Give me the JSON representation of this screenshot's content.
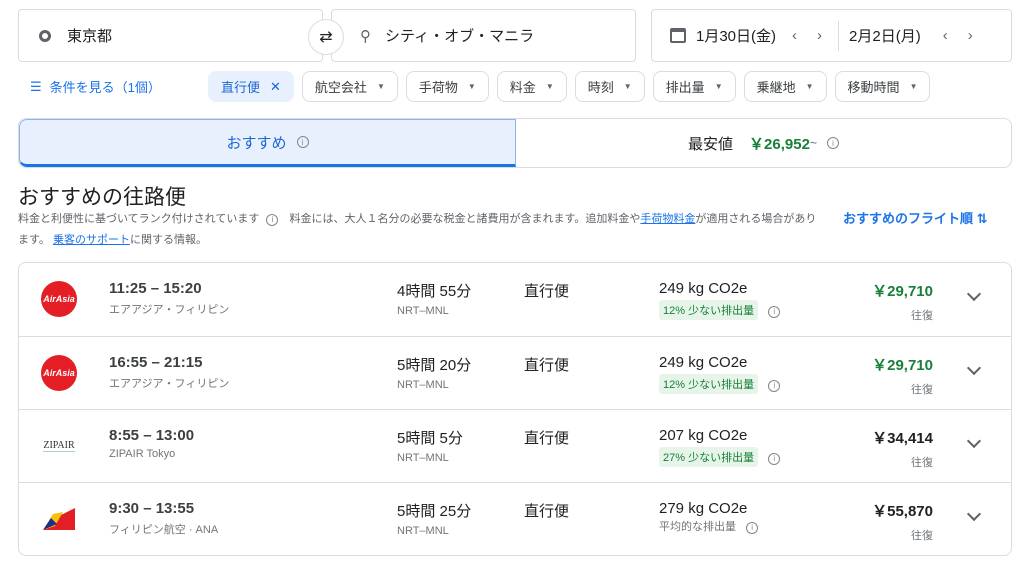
{
  "search": {
    "origin": "東京都",
    "destination": "シティ・オブ・マニラ",
    "depart_date": "1月30日(金)",
    "return_date": "2月2日(月)"
  },
  "filters": {
    "show_label": "条件を見る（1個）",
    "active": "直行便",
    "items": [
      "航空会社",
      "手荷物",
      "料金",
      "時刻",
      "排出量",
      "乗継地",
      "移動時間"
    ]
  },
  "tabs": {
    "best": "おすすめ",
    "cheapest": "最安値",
    "cheapest_price": "￥26,952",
    "cheapest_suffix": "~"
  },
  "section": {
    "title": "おすすめの往路便",
    "ranked_note": "料金と利便性に基づいてランク付けされています",
    "fare_note_a": "料金には、大人１名分の必要な税金と諸費用が含まれます。追加料金や",
    "baggage_link": "手荷物料金",
    "fare_note_b": "が適用される場合があります。",
    "support_link": "乗客のサポート",
    "fare_note_c": "に関する情報。",
    "sort_label": "おすすめのフライト順"
  },
  "colors": {
    "accent": "#1a73e8",
    "green": "#188038",
    "airasia": "#e31e24"
  },
  "flights": [
    {
      "logo": "AirAsia",
      "times": "11:25 – 15:20",
      "airline": "エアアジア・フィリピン",
      "duration": "4時間 55分",
      "route": "NRT–MNL",
      "stops": "直行便",
      "co2": "249 kg CO2e",
      "emissions": "12% 少ない排出量",
      "price": "￥29,710",
      "price_green": true,
      "trip": "往復"
    },
    {
      "logo": "AirAsia",
      "times": "16:55 – 21:15",
      "airline": "エアアジア・フィリピン",
      "duration": "5時間 20分",
      "route": "NRT–MNL",
      "stops": "直行便",
      "co2": "249 kg CO2e",
      "emissions": "12% 少ない排出量",
      "price": "￥29,710",
      "price_green": true,
      "trip": "往復"
    },
    {
      "logo": "ZIPAIR",
      "times": "8:55 – 13:00",
      "airline": "ZIPAIR Tokyo",
      "duration": "5時間 5分",
      "route": "NRT–MNL",
      "stops": "直行便",
      "co2": "207 kg CO2e",
      "emissions": "27% 少ない排出量",
      "price": "￥34,414",
      "price_green": false,
      "trip": "往復"
    },
    {
      "logo": "",
      "times": "9:30 – 13:55",
      "airline": "フィリピン航空 · ANA",
      "duration": "5時間 25分",
      "route": "NRT–MNL",
      "stops": "直行便",
      "co2": "279 kg CO2e",
      "emissions": "平均的な排出量",
      "price": "￥55,870",
      "price_green": false,
      "trip": "往復"
    }
  ]
}
